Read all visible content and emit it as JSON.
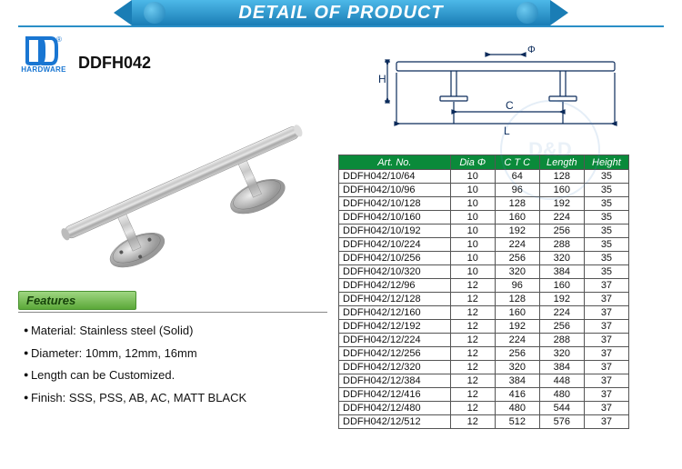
{
  "banner": {
    "title": "DETAIL OF PRODUCT"
  },
  "logo": {
    "brand": "HARDWARE"
  },
  "product": {
    "code": "DDFH042"
  },
  "features": {
    "header": "Features",
    "items": [
      "Material: Stainless steel (Solid)",
      "Diameter: 10mm, 12mm, 16mm",
      "Length can be Customized.",
      "Finish: SSS, PSS, AB, AC, MATT BLACK"
    ]
  },
  "table": {
    "headers": [
      "Art. No.",
      "Dia Φ",
      "C T C",
      "Length",
      "Height"
    ],
    "rows": [
      [
        "DDFH042/10/64",
        "10",
        "64",
        "128",
        "35"
      ],
      [
        "DDFH042/10/96",
        "10",
        "96",
        "160",
        "35"
      ],
      [
        "DDFH042/10/128",
        "10",
        "128",
        "192",
        "35"
      ],
      [
        "DDFH042/10/160",
        "10",
        "160",
        "224",
        "35"
      ],
      [
        "DDFH042/10/192",
        "10",
        "192",
        "256",
        "35"
      ],
      [
        "DDFH042/10/224",
        "10",
        "224",
        "288",
        "35"
      ],
      [
        "DDFH042/10/256",
        "10",
        "256",
        "320",
        "35"
      ],
      [
        "DDFH042/10/320",
        "10",
        "320",
        "384",
        "35"
      ],
      [
        "DDFH042/12/96",
        "12",
        "96",
        "160",
        "37"
      ],
      [
        "DDFH042/12/128",
        "12",
        "128",
        "192",
        "37"
      ],
      [
        "DDFH042/12/160",
        "12",
        "160",
        "224",
        "37"
      ],
      [
        "DDFH042/12/192",
        "12",
        "192",
        "256",
        "37"
      ],
      [
        "DDFH042/12/224",
        "12",
        "224",
        "288",
        "37"
      ],
      [
        "DDFH042/12/256",
        "12",
        "256",
        "320",
        "37"
      ],
      [
        "DDFH042/12/320",
        "12",
        "320",
        "384",
        "37"
      ],
      [
        "DDFH042/12/384",
        "12",
        "384",
        "448",
        "37"
      ],
      [
        "DDFH042/12/416",
        "12",
        "416",
        "480",
        "37"
      ],
      [
        "DDFH042/12/480",
        "12",
        "480",
        "544",
        "37"
      ],
      [
        "DDFH042/12/512",
        "12",
        "512",
        "576",
        "37"
      ]
    ]
  },
  "drawing": {
    "labels": {
      "H": "H",
      "C": "C",
      "L": "L",
      "phi": "Φ"
    }
  },
  "colors": {
    "banner_grad_top": "#4db8e8",
    "banner_grad_bot": "#1a7db5",
    "header_green": "#0a8a3a",
    "feat_grad_top": "#9fd682",
    "feat_grad_bot": "#5ba838",
    "logo_blue": "#1976d2",
    "border": "#555555"
  }
}
